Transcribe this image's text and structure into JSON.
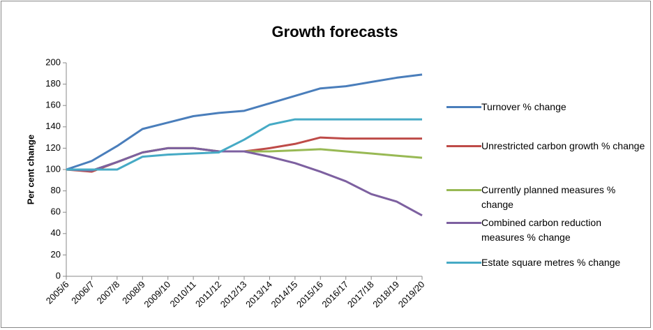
{
  "chart_data": {
    "type": "line",
    "title": "Growth forecasts",
    "y_label": "Per cent change",
    "categories": [
      "2005/6",
      "2006/7",
      "2007/8",
      "2008/9",
      "2009/10",
      "2010/11",
      "2011/12",
      "2012/13",
      "2013/14",
      "2014/15",
      "2015/16",
      "2016/17",
      "2017/18",
      "2018/19",
      "2019/20"
    ],
    "series": [
      {
        "name": "Turnover % change",
        "color": "#4a7ebb",
        "values": [
          100,
          108,
          122,
          138,
          144,
          150,
          153,
          155,
          162,
          169,
          176,
          178,
          182,
          186,
          189
        ]
      },
      {
        "name": "Unrestricted carbon growth % change",
        "color": "#be4b48",
        "values": [
          100,
          98,
          107,
          116,
          120,
          120,
          117,
          117,
          120,
          124,
          130,
          129,
          129,
          129,
          129
        ]
      },
      {
        "name": "Currently planned measures % change",
        "color": "#98b954",
        "values": [
          100,
          99,
          107,
          116,
          120,
          120,
          117,
          117,
          117,
          118,
          119,
          117,
          115,
          113,
          111
        ]
      },
      {
        "name": "Combined carbon reduction measures % change",
        "color": "#7d60a0",
        "values": [
          100,
          99,
          107,
          116,
          120,
          120,
          117,
          117,
          112,
          106,
          98,
          89,
          77,
          70,
          57
        ]
      },
      {
        "name": "Estate square metres % change",
        "color": "#46aac5",
        "values": [
          100,
          100,
          100,
          112,
          114,
          115,
          116,
          128,
          142,
          147,
          147,
          147,
          147,
          147,
          147
        ]
      }
    ],
    "ylim": [
      0,
      200
    ],
    "yticks": [
      0,
      20,
      40,
      60,
      80,
      100,
      120,
      140,
      160,
      180,
      200
    ]
  }
}
